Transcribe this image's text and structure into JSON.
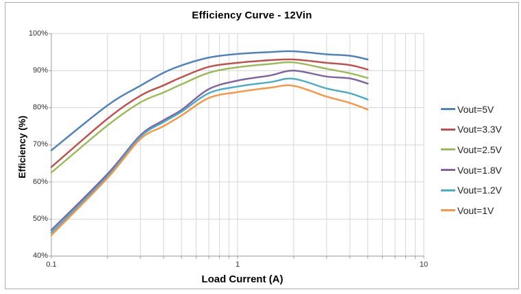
{
  "chart_data": {
    "type": "line",
    "title": "Efficiency Curve - 12Vin",
    "xlabel": "Load Current (A)",
    "ylabel": "Efficiency (%)",
    "x_scale": "log",
    "xlim": [
      0.1,
      10
    ],
    "ylim": [
      40,
      100
    ],
    "x_tick_labels": [
      "0.1",
      "1",
      "10"
    ],
    "x_tick_values": [
      0.1,
      1,
      10
    ],
    "y_tick_values": [
      40,
      50,
      60,
      70,
      80,
      90,
      100
    ],
    "y_tick_format": "percent",
    "grid": "both",
    "legend_position": "right",
    "x": [
      0.1,
      0.2,
      0.3,
      0.4,
      0.5,
      0.7,
      1,
      1.5,
      2,
      3,
      4,
      5
    ],
    "series": [
      {
        "name": "Vout=5V",
        "color": "#4F81BD",
        "values": [
          68.5,
          80.6,
          85.9,
          89.4,
          91.4,
          93.5,
          94.5,
          95.0,
          95.2,
          94.4,
          94.0,
          93.0
        ]
      },
      {
        "name": "Vout=3.3V",
        "color": "#C0504D",
        "values": [
          64.0,
          77.0,
          83.2,
          86.0,
          88.2,
          91.0,
          92.1,
          92.8,
          93.0,
          92.1,
          91.5,
          90.3
        ]
      },
      {
        "name": "Vout=2.5V",
        "color": "#9BBB59",
        "values": [
          62.5,
          75.2,
          81.4,
          84.1,
          86.3,
          89.4,
          90.9,
          91.8,
          92.2,
          90.5,
          89.3,
          88.0
        ]
      },
      {
        "name": "Vout=1.8V",
        "color": "#8064A2",
        "values": [
          47.0,
          62.1,
          72.5,
          76.6,
          79.4,
          85.0,
          87.3,
          88.7,
          90.0,
          88.4,
          87.9,
          86.5
        ]
      },
      {
        "name": "Vout=1.2V",
        "color": "#4BACC6",
        "values": [
          46.3,
          61.5,
          72.1,
          76.1,
          78.9,
          83.9,
          85.7,
          86.9,
          87.8,
          85.2,
          83.9,
          82.2
        ]
      },
      {
        "name": "Vout=1V",
        "color": "#F79646",
        "values": [
          45.6,
          61.0,
          71.5,
          75.0,
          77.9,
          82.6,
          84.2,
          85.4,
          85.9,
          83.0,
          81.3,
          79.5
        ]
      }
    ],
    "colors": {
      "grid": "#d6d6d6",
      "axis": "#9e9e9e",
      "tick_text": "#2e2e2e",
      "frame_border": "#ababab"
    }
  }
}
